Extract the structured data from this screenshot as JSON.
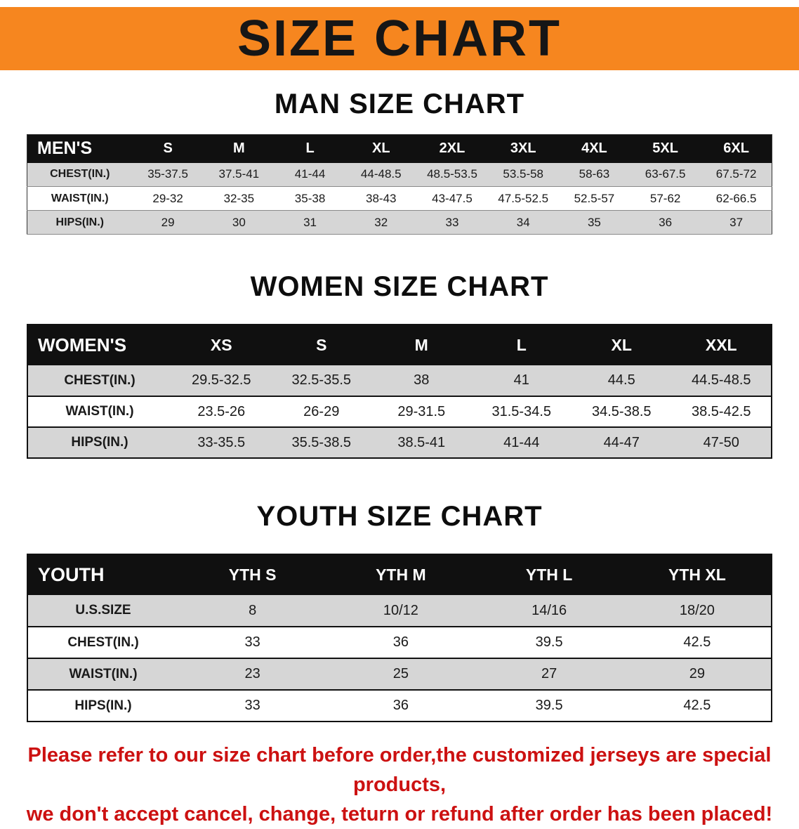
{
  "banner": {
    "title": "SIZE CHART"
  },
  "colors": {
    "banner_bg": "#f6861f",
    "table_header_bg": "#101010",
    "row_alt_bg": "#d6d6d6",
    "footer_text": "#cc1111"
  },
  "men": {
    "heading": "MAN SIZE CHART",
    "table": {
      "header": [
        "MEN'S",
        "S",
        "M",
        "L",
        "XL",
        "2XL",
        "3XL",
        "4XL",
        "5XL",
        "6XL"
      ],
      "rows": [
        [
          "CHEST(IN.)",
          "35-37.5",
          "37.5-41",
          "41-44",
          "44-48.5",
          "48.5-53.5",
          "53.5-58",
          "58-63",
          "63-67.5",
          "67.5-72"
        ],
        [
          "WAIST(IN.)",
          "29-32",
          "32-35",
          "35-38",
          "38-43",
          "43-47.5",
          "47.5-52.5",
          "52.5-57",
          "57-62",
          "62-66.5"
        ],
        [
          "HIPS(IN.)",
          "29",
          "30",
          "31",
          "32",
          "33",
          "34",
          "35",
          "36",
          "37"
        ]
      ]
    }
  },
  "women": {
    "heading": "WOMEN SIZE CHART",
    "table": {
      "header": [
        "WOMEN'S",
        "XS",
        "S",
        "M",
        "L",
        "XL",
        "XXL"
      ],
      "rows": [
        [
          "CHEST(IN.)",
          "29.5-32.5",
          "32.5-35.5",
          "38",
          "41",
          "44.5",
          "44.5-48.5"
        ],
        [
          "WAIST(IN.)",
          "23.5-26",
          "26-29",
          "29-31.5",
          "31.5-34.5",
          "34.5-38.5",
          "38.5-42.5"
        ],
        [
          "HIPS(IN.)",
          "33-35.5",
          "35.5-38.5",
          "38.5-41",
          "41-44",
          "44-47",
          "47-50"
        ]
      ]
    }
  },
  "youth": {
    "heading": "YOUTH SIZE CHART",
    "table": {
      "header": [
        "YOUTH",
        "YTH S",
        "YTH M",
        "YTH L",
        "YTH XL"
      ],
      "rows": [
        [
          "U.S.SIZE",
          "8",
          "10/12",
          "14/16",
          "18/20"
        ],
        [
          "CHEST(IN.)",
          "33",
          "36",
          "39.5",
          "42.5"
        ],
        [
          "WAIST(IN.)",
          "23",
          "25",
          "27",
          "29"
        ],
        [
          "HIPS(IN.)",
          "33",
          "36",
          "39.5",
          "42.5"
        ]
      ]
    }
  },
  "footer": {
    "line1": "Please refer to our size chart before order,the customized jerseys are special products,",
    "line2": "we don't accept cancel, change, teturn or refund after order has been placed!"
  }
}
